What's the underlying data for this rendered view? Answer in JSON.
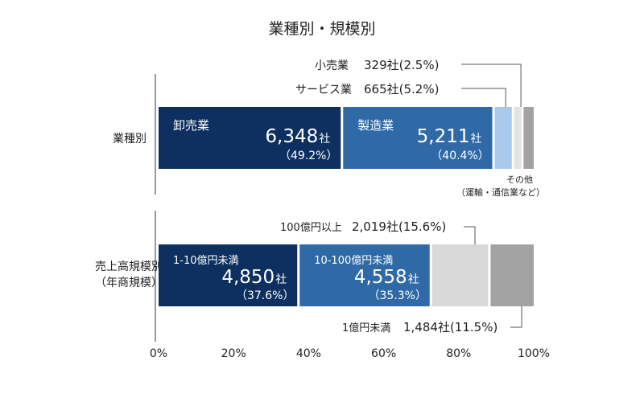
{
  "chart_data": {
    "type": "bar",
    "orientation": "horizontal",
    "stacked": true,
    "title": "業種別・規模別",
    "xlim": [
      0,
      100
    ],
    "x_ticks": [
      "0%",
      "20%",
      "40%",
      "60%",
      "80%",
      "100%"
    ],
    "categories": [
      "業種別",
      "売上高規模別\n（年商規模）"
    ],
    "colors": {
      "dark_navy": "#0d3060",
      "medium_blue": "#2f6aa7",
      "light_blue": "#a9c9ea",
      "very_light_gray": "#e3e3e3",
      "light_gray": "#d9d9d9",
      "gray": "#a3a3a3",
      "text": "#222222",
      "axis": "#555555",
      "label_text": "#ffffff"
    },
    "rows": [
      {
        "category": "業種別",
        "segments": [
          {
            "name": "卸売業",
            "count": "6,348",
            "unit": "社",
            "pct_label": "（49.2%）",
            "value": 49.2,
            "color": "#0d3060",
            "label_inside": true
          },
          {
            "name": "製造業",
            "count": "5,211",
            "unit": "社",
            "pct_label": "（40.4%）",
            "value": 40.4,
            "color": "#2f6aa7",
            "label_inside": true
          },
          {
            "name": "サービス業",
            "count": "665",
            "unit": "社",
            "pct_label": "(5.2%)",
            "value": 5.2,
            "color": "#a9c9ea",
            "label_inside": false,
            "callout_text": "665社(5.2%)"
          },
          {
            "name": "小売業",
            "count": "329",
            "unit": "社",
            "pct_label": "(2.5%)",
            "value": 2.5,
            "color": "#e3e3e3",
            "label_inside": false,
            "callout_text": "329社(2.5%)"
          },
          {
            "name": "その他",
            "name_sub": "（運輸・通信業など）",
            "value": 2.7,
            "color": "#a3a3a3",
            "label_inside": false
          }
        ]
      },
      {
        "category": "売上高規模別（年商規模）",
        "segments": [
          {
            "name": "1-10億円未満",
            "count": "4,850",
            "unit": "社",
            "pct_label": "（37.6%）",
            "value": 37.6,
            "color": "#0d3060",
            "label_inside": true
          },
          {
            "name": "10-100億円未満",
            "count": "4,558",
            "unit": "社",
            "pct_label": "（35.3%）",
            "value": 35.3,
            "color": "#2f6aa7",
            "label_inside": true
          },
          {
            "name": "100億円以上",
            "count": "2,019",
            "unit": "社",
            "pct_label": "(15.6%)",
            "value": 15.6,
            "color": "#d9d9d9",
            "label_inside": false,
            "callout_text": "2,019社(15.6%)"
          },
          {
            "name": "1億円未満",
            "count": "1,484",
            "unit": "社",
            "pct_label": "(11.5%)",
            "value": 11.5,
            "color": "#a3a3a3",
            "label_inside": false,
            "callout_text": "1,484社(11.5%)"
          }
        ]
      }
    ]
  }
}
